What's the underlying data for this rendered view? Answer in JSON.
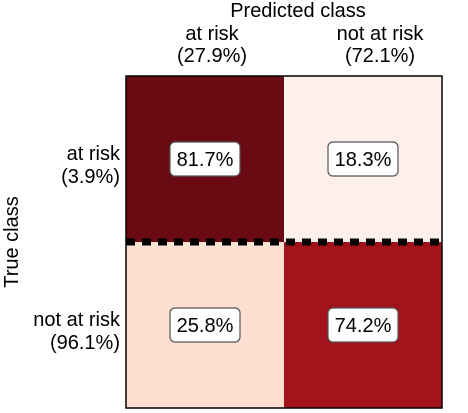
{
  "chart_data": {
    "type": "heatmap",
    "title": "",
    "xlabel": "Predicted class",
    "ylabel": "True class",
    "x_categories": [
      {
        "label": "at risk",
        "share": "(27.9%)"
      },
      {
        "label": "not at risk",
        "share": "(72.1%)"
      }
    ],
    "y_categories": [
      {
        "label": "at risk",
        "share": "(3.9%)"
      },
      {
        "label": "not at risk",
        "share": "(96.1%)"
      }
    ],
    "values": [
      [
        81.7,
        18.3
      ],
      [
        25.8,
        74.2
      ]
    ],
    "cell_labels": [
      [
        "81.7%",
        "18.3%"
      ],
      [
        "25.8%",
        "74.2%"
      ]
    ],
    "value_range": [
      0,
      100
    ],
    "colormap": "Reds",
    "row_divider": "dotted"
  },
  "colors": {
    "cell_0_0": "#6a0a12",
    "cell_0_1": "#fdf0ea",
    "cell_1_0": "#fde0d2",
    "cell_1_1": "#a2131b",
    "label_box_bg": "#ffffff",
    "label_box_border": "#555555",
    "divider": "#000000"
  }
}
